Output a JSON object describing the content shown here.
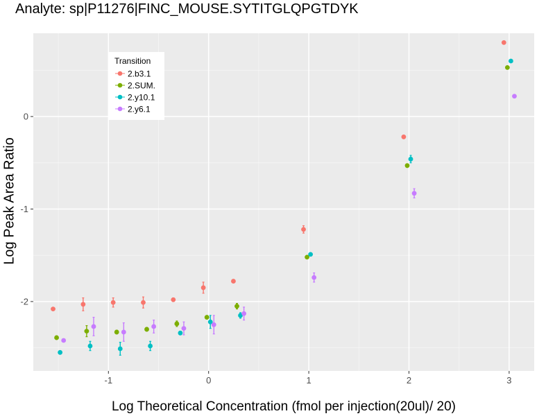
{
  "chart_data": {
    "type": "scatter",
    "title": "Analyte: sp|P11276|FINC_MOUSE.SYTITGLQPGTDYK",
    "xlabel": "Log Theoretical Concentration (fmol per injection(20ul)/ 20)",
    "ylabel": "Log Peak Area Ratio",
    "xlim": [
      -1.75,
      3.25
    ],
    "ylim": [
      -2.75,
      0.9
    ],
    "x_ticks": [
      -1,
      0,
      1,
      2,
      3
    ],
    "y_ticks": [
      -2,
      -1,
      0
    ],
    "grid": true,
    "legend": {
      "title": "Transition",
      "position": "top-left"
    },
    "series": [
      {
        "name": "2.b3.1",
        "color": "#F8766D",
        "x": [
          -1.5,
          -1.2,
          -0.9,
          -0.6,
          -0.3,
          0.0,
          0.3,
          1.0,
          2.0,
          3.0
        ],
        "y": [
          -2.08,
          -2.03,
          -2.01,
          -2.01,
          -1.98,
          -1.85,
          -1.78,
          -1.22,
          -0.22,
          0.8
        ],
        "err": [
          0,
          0.07,
          0.05,
          0.06,
          0.02,
          0.06,
          0,
          0.04,
          0,
          0
        ]
      },
      {
        "name": "2.SUM.",
        "color": "#7CAE00",
        "x": [
          -1.5,
          -1.2,
          -0.9,
          -0.6,
          -0.3,
          0.0,
          0.3,
          1.0,
          2.0,
          3.0
        ],
        "y": [
          -2.39,
          -2.32,
          -2.33,
          -2.3,
          -2.24,
          -2.17,
          -2.05,
          -1.52,
          -0.53,
          0.53
        ],
        "err": [
          0.02,
          0.06,
          0.02,
          0.02,
          0.03,
          0.02,
          0.03,
          0,
          0.02,
          0
        ]
      },
      {
        "name": "2.y10.1",
        "color": "#00BFC4",
        "x": [
          -1.5,
          -1.2,
          -0.9,
          -0.6,
          -0.3,
          0.0,
          0.3,
          1.0,
          2.0,
          3.0
        ],
        "y": [
          -2.55,
          -2.48,
          -2.51,
          -2.48,
          -2.34,
          -2.22,
          -2.15,
          -1.49,
          -0.46,
          0.6
        ],
        "err": [
          0,
          0.05,
          0.07,
          0.05,
          0.02,
          0.07,
          0.03,
          0,
          0.04,
          0
        ]
      },
      {
        "name": "2.y6.1",
        "color": "#C77CFF",
        "x": [
          -1.5,
          -1.2,
          -0.9,
          -0.6,
          -0.3,
          0.0,
          0.3,
          1.0,
          2.0,
          3.0
        ],
        "y": [
          -2.42,
          -2.27,
          -2.33,
          -2.27,
          -2.29,
          -2.25,
          -2.13,
          -1.74,
          -0.83,
          0.22
        ],
        "err": [
          0,
          0.1,
          0.1,
          0.07,
          0.07,
          0.1,
          0.07,
          0.05,
          0.05,
          0
        ]
      }
    ]
  }
}
